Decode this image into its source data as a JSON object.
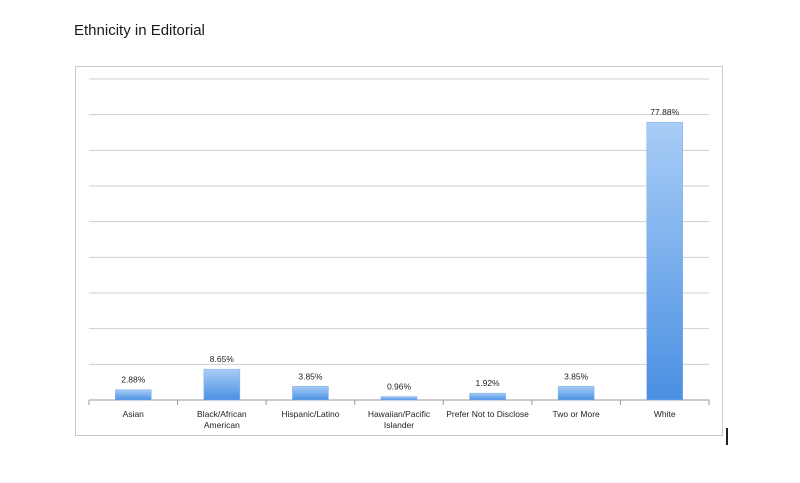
{
  "page": {
    "heading": "Ethnicity in Editorial"
  },
  "chart_data": {
    "type": "bar",
    "title": "Ethnicity in Editorial",
    "xlabel": "",
    "ylabel": "",
    "categories": [
      [
        "Asian"
      ],
      [
        "Black/African",
        "American"
      ],
      [
        "Hispanic/Latino"
      ],
      [
        "Hawaiian/Pacific",
        "Islander"
      ],
      [
        "Prefer Not to Disclose"
      ],
      [
        "Two or More"
      ],
      [
        "White"
      ]
    ],
    "values": [
      2.88,
      8.65,
      3.85,
      0.96,
      1.92,
      3.85,
      77.88
    ],
    "value_labels": [
      "2.88%",
      "8.65%",
      "3.85%",
      "0.96%",
      "1.92%",
      "3.85%",
      "77.88%"
    ],
    "ylim": [
      0,
      90
    ],
    "y_gridline_step": 10,
    "grid": true,
    "legend": "none",
    "bar_color_top": "#a9cdf7",
    "bar_color_bottom": "#4a90e2"
  }
}
